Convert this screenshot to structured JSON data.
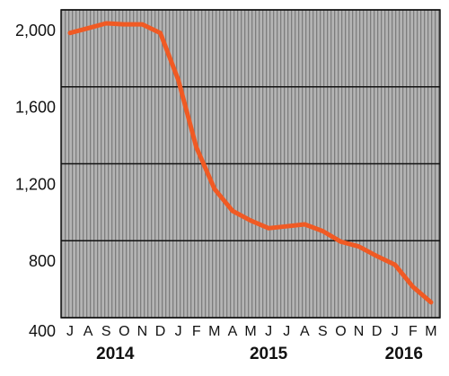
{
  "chart_data": {
    "type": "line",
    "categories": [
      "J",
      "A",
      "S",
      "O",
      "N",
      "D",
      "J",
      "F",
      "M",
      "A",
      "M",
      "J",
      "J",
      "A",
      "S",
      "O",
      "N",
      "D",
      "J",
      "F",
      "M"
    ],
    "years": [
      "2014",
      "2015",
      "2016"
    ],
    "series": [
      {
        "color": "#f05a24",
        "values": [
          1880,
          1905,
          1930,
          1925,
          1925,
          1880,
          1635,
          1285,
          1070,
          955,
          905,
          865,
          875,
          885,
          850,
          795,
          770,
          720,
          675,
          560,
          480
        ]
      }
    ],
    "ylim": [
      400,
      2000
    ],
    "yticks": [
      400,
      800,
      {
        "value": 1200,
        "label": "1,200"
      },
      {
        "value": 1600,
        "label": "1,600"
      },
      {
        "value": 2000,
        "label": "2,000"
      }
    ],
    "grid": true
  }
}
